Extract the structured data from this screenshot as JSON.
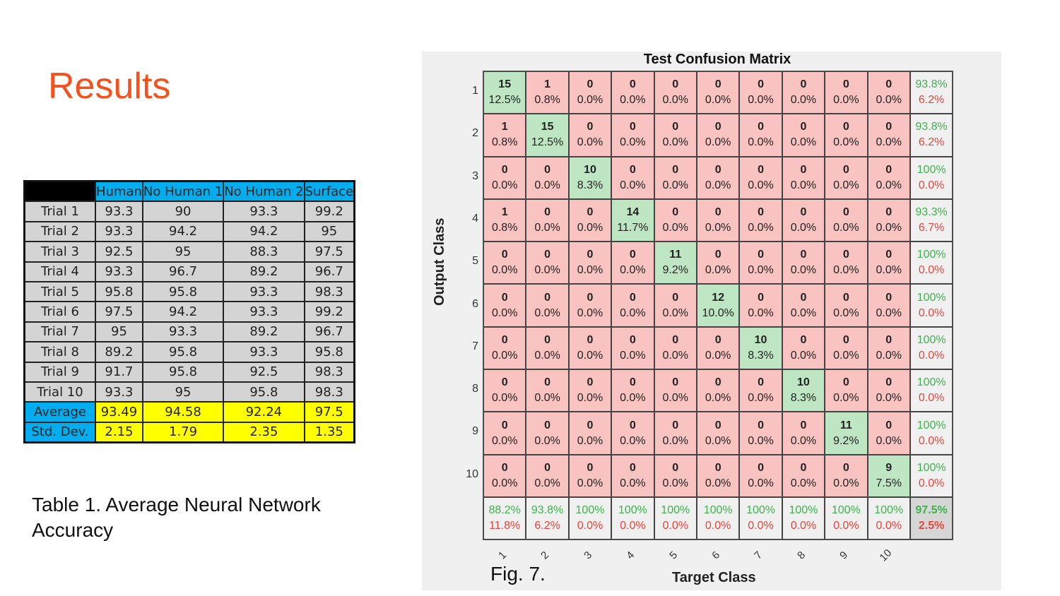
{
  "slide": {
    "title": "Results",
    "caption": "Table 1. Average Neural Network Accuracy",
    "fig_caption": "Fig. 7."
  },
  "table": {
    "headers": [
      "",
      "Human",
      "No Human 1",
      "No Human 2",
      "Surface"
    ],
    "rows": [
      [
        "Trial 1",
        "93.3",
        "90",
        "93.3",
        "99.2"
      ],
      [
        "Trial 2",
        "93.3",
        "94.2",
        "94.2",
        "95"
      ],
      [
        "Trial 3",
        "92.5",
        "95",
        "88.3",
        "97.5"
      ],
      [
        "Trial 4",
        "93.3",
        "96.7",
        "89.2",
        "96.7"
      ],
      [
        "Trial 5",
        "95.8",
        "95.8",
        "93.3",
        "98.3"
      ],
      [
        "Trial 6",
        "97.5",
        "94.2",
        "93.3",
        "99.2"
      ],
      [
        "Trial 7",
        "95",
        "93.3",
        "89.2",
        "96.7"
      ],
      [
        "Trial 8",
        "89.2",
        "95.8",
        "93.3",
        "95.8"
      ],
      [
        "Trial 9",
        "91.7",
        "95.8",
        "92.5",
        "98.3"
      ],
      [
        "Trial 10",
        "93.3",
        "95",
        "95.8",
        "98.3"
      ]
    ],
    "footer": [
      [
        "Average",
        "93.49",
        "94.58",
        "92.24",
        "97.5"
      ],
      [
        "Std. Dev.",
        "2.15",
        "1.79",
        "2.35",
        "1.35"
      ]
    ]
  },
  "chart_data": {
    "type": "heatmap",
    "title": "Test Confusion Matrix",
    "xlabel": "Target Class",
    "ylabel": "Output Class",
    "classes": [
      "1",
      "2",
      "3",
      "4",
      "5",
      "6",
      "7",
      "8",
      "9",
      "10"
    ],
    "counts": [
      [
        15,
        1,
        0,
        0,
        0,
        0,
        0,
        0,
        0,
        0
      ],
      [
        1,
        15,
        0,
        0,
        0,
        0,
        0,
        0,
        0,
        0
      ],
      [
        0,
        0,
        10,
        0,
        0,
        0,
        0,
        0,
        0,
        0
      ],
      [
        1,
        0,
        0,
        14,
        0,
        0,
        0,
        0,
        0,
        0
      ],
      [
        0,
        0,
        0,
        0,
        11,
        0,
        0,
        0,
        0,
        0
      ],
      [
        0,
        0,
        0,
        0,
        0,
        12,
        0,
        0,
        0,
        0
      ],
      [
        0,
        0,
        0,
        0,
        0,
        0,
        10,
        0,
        0,
        0
      ],
      [
        0,
        0,
        0,
        0,
        0,
        0,
        0,
        10,
        0,
        0
      ],
      [
        0,
        0,
        0,
        0,
        0,
        0,
        0,
        0,
        11,
        0
      ],
      [
        0,
        0,
        0,
        0,
        0,
        0,
        0,
        0,
        0,
        9
      ]
    ],
    "percents": [
      [
        "12.5%",
        "0.8%",
        "0.0%",
        "0.0%",
        "0.0%",
        "0.0%",
        "0.0%",
        "0.0%",
        "0.0%",
        "0.0%"
      ],
      [
        "0.8%",
        "12.5%",
        "0.0%",
        "0.0%",
        "0.0%",
        "0.0%",
        "0.0%",
        "0.0%",
        "0.0%",
        "0.0%"
      ],
      [
        "0.0%",
        "0.0%",
        "8.3%",
        "0.0%",
        "0.0%",
        "0.0%",
        "0.0%",
        "0.0%",
        "0.0%",
        "0.0%"
      ],
      [
        "0.8%",
        "0.0%",
        "0.0%",
        "11.7%",
        "0.0%",
        "0.0%",
        "0.0%",
        "0.0%",
        "0.0%",
        "0.0%"
      ],
      [
        "0.0%",
        "0.0%",
        "0.0%",
        "0.0%",
        "9.2%",
        "0.0%",
        "0.0%",
        "0.0%",
        "0.0%",
        "0.0%"
      ],
      [
        "0.0%",
        "0.0%",
        "0.0%",
        "0.0%",
        "0.0%",
        "10.0%",
        "0.0%",
        "0.0%",
        "0.0%",
        "0.0%"
      ],
      [
        "0.0%",
        "0.0%",
        "0.0%",
        "0.0%",
        "0.0%",
        "0.0%",
        "8.3%",
        "0.0%",
        "0.0%",
        "0.0%"
      ],
      [
        "0.0%",
        "0.0%",
        "0.0%",
        "0.0%",
        "0.0%",
        "0.0%",
        "0.0%",
        "8.3%",
        "0.0%",
        "0.0%"
      ],
      [
        "0.0%",
        "0.0%",
        "0.0%",
        "0.0%",
        "0.0%",
        "0.0%",
        "0.0%",
        "0.0%",
        "9.2%",
        "0.0%"
      ],
      [
        "0.0%",
        "0.0%",
        "0.0%",
        "0.0%",
        "0.0%",
        "0.0%",
        "0.0%",
        "0.0%",
        "0.0%",
        "7.5%"
      ]
    ],
    "row_summary": [
      [
        "93.8%",
        "6.2%"
      ],
      [
        "93.8%",
        "6.2%"
      ],
      [
        "100%",
        "0.0%"
      ],
      [
        "93.3%",
        "6.7%"
      ],
      [
        "100%",
        "0.0%"
      ],
      [
        "100%",
        "0.0%"
      ],
      [
        "100%",
        "0.0%"
      ],
      [
        "100%",
        "0.0%"
      ],
      [
        "100%",
        "0.0%"
      ],
      [
        "100%",
        "0.0%"
      ]
    ],
    "col_summary": [
      [
        "88.2%",
        "11.8%"
      ],
      [
        "93.8%",
        "6.2%"
      ],
      [
        "100%",
        "0.0%"
      ],
      [
        "100%",
        "0.0%"
      ],
      [
        "100%",
        "0.0%"
      ],
      [
        "100%",
        "0.0%"
      ],
      [
        "100%",
        "0.0%"
      ],
      [
        "100%",
        "0.0%"
      ],
      [
        "100%",
        "0.0%"
      ],
      [
        "100%",
        "0.0%"
      ]
    ],
    "overall": [
      "97.5%",
      "2.5%"
    ],
    "colors": {
      "correct": "#bfe6c3",
      "incorrect": "#f8c3c0",
      "good_text": "#3cb44b",
      "bad_text": "#e8453c"
    }
  }
}
